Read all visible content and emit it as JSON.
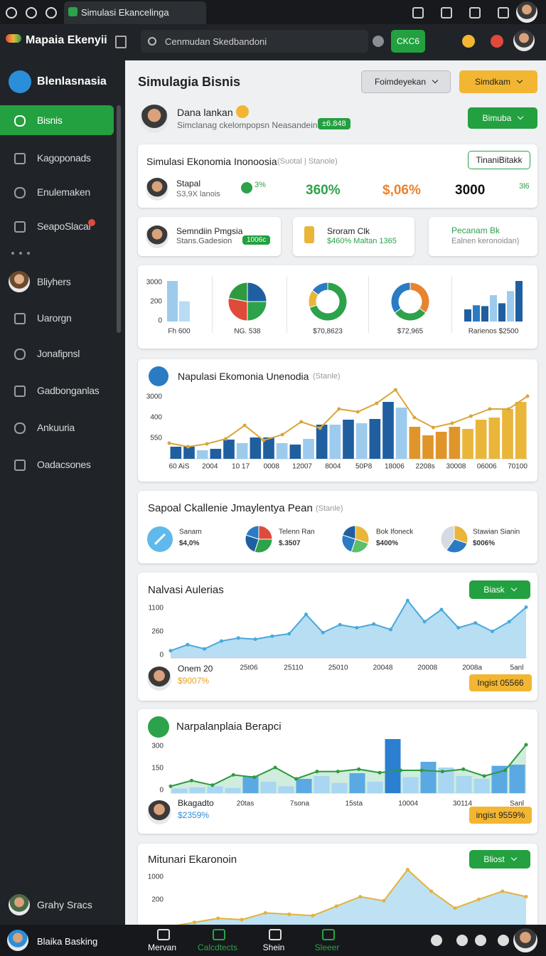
{
  "browser": {
    "tab": "Simulasi Ekancelinga"
  },
  "app": {
    "name": "Mapaia Ekenyii",
    "search": "Cenmudan Skedbandoni",
    "action": "CKC6"
  },
  "sidebar": {
    "header": "Blenlasnasia",
    "items": [
      "Bisnis",
      "Kagoponads",
      "Enulemaken",
      "SeapoSlacal",
      "Bliyhers",
      "Uarorgn",
      "Jonafipnsl",
      "Gadbonganlas",
      "Ankuuria",
      "Oadacsones"
    ],
    "user": "Grahy Sracs"
  },
  "bottom_bar": {
    "user": "Blaika Basking",
    "tabs": [
      "Mervan",
      "Calcdtects",
      "Shein",
      "Sleeer"
    ]
  },
  "page": {
    "title": "Simulagia Bisnis",
    "buttons": [
      "Foimdeyekan",
      "Simdkam"
    ]
  },
  "profile": {
    "name": "Dana lankan",
    "subtitle": "Simclanag ckelompopsn Neasandein",
    "badge": "±6.848",
    "button": "Bimuba"
  },
  "summary": {
    "title": "Simulasi Ekonomia Inonoosia",
    "tag": "(Suotal | Stanole)",
    "button": "TinaniBitakk",
    "person": "Stapal",
    "detail": "S3,9X lanois",
    "stats": [
      "3%",
      "360%",
      "$,06%",
      "3000",
      "3l6"
    ]
  },
  "info_cards": [
    {
      "title": "Semndiin Pmgsia",
      "subtitle": "Stans.Gadesion",
      "badge": "1006c"
    },
    {
      "title": "Sroram Clk",
      "subtitle": "$460% Maltan 1365"
    },
    {
      "title": "Pecanam Bk",
      "subtitle": "Ealnen keronoidan)"
    }
  ],
  "mini_charts": [
    {
      "type": "bar",
      "ylabels": [
        "3000",
        "200",
        "0"
      ],
      "ylim": [
        0,
        100
      ],
      "values": [
        100,
        50
      ],
      "colors": [
        "#9ccbee",
        "#b8dcf5"
      ],
      "label": "Fh 600"
    },
    {
      "type": "pie",
      "values": [
        25,
        25,
        28,
        22
      ],
      "colors": [
        "#1f5fa0",
        "#2ca24a",
        "#e04a3a",
        "#2e9a3e"
      ],
      "label": "NG. 538"
    },
    {
      "type": "donut",
      "values": [
        70,
        15,
        15
      ],
      "colors": [
        "#2ca24a",
        "#e9b63a",
        "#2a7bc4"
      ],
      "label": "$70,8623"
    },
    {
      "type": "donut",
      "values": [
        35,
        30,
        35
      ],
      "colors": [
        "#e8832f",
        "#2ca24a",
        "#2a7bc4"
      ],
      "label": "$72,965"
    },
    {
      "type": "bar",
      "ylim": [
        0,
        100
      ],
      "values": [
        30,
        40,
        38,
        65,
        45,
        75,
        100
      ],
      "colors": [
        "#1f5fa0",
        "#2a7bc4",
        "#1f5fa0",
        "#9ccbee",
        "#1f5fa0",
        "#9ccbee",
        "#1f5fa0"
      ],
      "label": "Rarienos $2500"
    }
  ],
  "breakdown": {
    "title": "Sapoal Ckallenie Jmaylentya Pean",
    "tag": "(Stanle)",
    "items": [
      {
        "name": "Sanam",
        "value": "$4,0%"
      },
      {
        "name": "Telenn Ran",
        "value": "$.3507",
        "shares": [
          25,
          30,
          25,
          20
        ],
        "colors": [
          "#e04a3a",
          "#2ca24a",
          "#1f5fa0",
          "#2a7bc4"
        ]
      },
      {
        "name": "Bok Ifoneck",
        "value": "$400%",
        "shares": [
          30,
          25,
          25,
          20
        ],
        "colors": [
          "#e9b63a",
          "#5cbf6a",
          "#2a7bc4",
          "#1f5fa0"
        ]
      },
      {
        "name": "Stawian Sianin",
        "value": "$006%",
        "shares": [
          30,
          30,
          40
        ],
        "colors": [
          "#e9b63a",
          "#2a7bc4",
          "#d5dbe2"
        ]
      }
    ]
  },
  "charts": [
    {
      "title": "Napulasi Ekomonia Unenodia",
      "tag": "(Stanle)",
      "ylabels": [
        "3000",
        "400",
        "550"
      ],
      "ylim": [
        0,
        100
      ],
      "xlabels": [
        "60 AiS",
        "2004",
        "10 17",
        "0008",
        "12007",
        "8004",
        "50P8",
        "18006",
        "2208s",
        "30008",
        "06006",
        "70100"
      ],
      "bars": {
        "values": [
          17,
          17,
          12,
          14,
          27,
          22,
          30,
          30,
          22,
          20,
          28,
          48,
          48,
          55,
          50,
          56,
          80,
          72,
          45,
          33,
          38,
          45,
          42,
          55,
          58,
          70,
          80
        ],
        "colors": [
          "#1f5fa0",
          "#1f5fa0",
          "#9ccbee",
          "#1f5fa0",
          "#1f5fa0",
          "#9ccbee",
          "#1f5fa0",
          "#1f5fa0",
          "#9ccbee",
          "#1f5fa0",
          "#9ccbee",
          "#1f5fa0",
          "#9ccbee",
          "#1f5fa0",
          "#9ccbee",
          "#1f5fa0",
          "#1f5fa0",
          "#9ccbee",
          "#e0952b",
          "#e0952b",
          "#e0952b",
          "#e0952b",
          "#e9b63a",
          "#e9b63a",
          "#e9b63a",
          "#e9b63a",
          "#e9b63a"
        ]
      },
      "line": {
        "values": [
          22,
          17,
          21,
          28,
          47,
          26,
          34,
          52,
          43,
          70,
          66,
          78,
          97,
          58,
          44,
          50,
          60,
          70,
          70,
          88
        ],
        "color": "#d9a63a"
      }
    },
    {
      "title": "Nalvasi Aulerias",
      "button": "Biask",
      "ylabels": [
        "1100",
        "260",
        "0"
      ],
      "ylim": [
        0,
        100
      ],
      "xlabels": [
        "25t06",
        "25110",
        "25010",
        "20048",
        "20008",
        "2008a",
        "5anl"
      ],
      "area": {
        "values": [
          12,
          22,
          15,
          28,
          33,
          31,
          36,
          40,
          72,
          42,
          55,
          50,
          56,
          47,
          95,
          60,
          80,
          50,
          58,
          44,
          60,
          84
        ],
        "color": "#9fd3ee",
        "stroke": "#4aa8db"
      },
      "footer": {
        "name": "Onem 20",
        "value": "$9007%",
        "badge": "Ingist 05566"
      }
    },
    {
      "title": "Narpalanplaia Berapci",
      "ylabels": [
        "300",
        "150",
        "0"
      ],
      "ylim": [
        0,
        100
      ],
      "xlabels": [
        "20tas",
        "7sona",
        "15sta",
        "10004",
        "30114",
        "Sanl"
      ],
      "bars": {
        "values": [
          8,
          10,
          12,
          9,
          30,
          20,
          12,
          25,
          30,
          18,
          35,
          20,
          95,
          28,
          55,
          45,
          30,
          25,
          48,
          50
        ],
        "colors": [
          "#a9d6f2",
          "#a9d6f2",
          "#a9d6f2",
          "#a9d6f2",
          "#5aa9e3",
          "#a9d6f2",
          "#a9d6f2",
          "#5aa9e3",
          "#a9d6f2",
          "#a9d6f2",
          "#5aa9e3",
          "#a9d6f2",
          "#2b7fd0",
          "#a9d6f2",
          "#5aa9e3",
          "#a9d6f2",
          "#a9d6f2",
          "#a9d6f2",
          "#5aa9e3",
          "#5aa9e3"
        ]
      },
      "line": {
        "values": [
          12,
          22,
          14,
          32,
          28,
          45,
          25,
          38,
          38,
          42,
          36,
          40,
          40,
          38,
          42,
          30,
          40,
          85
        ],
        "color": "#2e9a3e",
        "fill": "#bfe5d2"
      },
      "footer": {
        "name": "Bkagadto",
        "value": "$2359%",
        "badge": "ingist 9559%"
      }
    },
    {
      "title": "Mitunari Ekaronoin",
      "button": "Bliost",
      "ylabels": [
        "1000",
        "200"
      ],
      "ylim": [
        0,
        100
      ],
      "area": {
        "values": [
          8,
          14,
          20,
          18,
          28,
          26,
          24,
          38,
          52,
          46,
          92,
          60,
          35,
          48,
          60,
          52
        ],
        "color": "#a8d8ef",
        "stroke": "#e3b23c"
      }
    }
  ]
}
